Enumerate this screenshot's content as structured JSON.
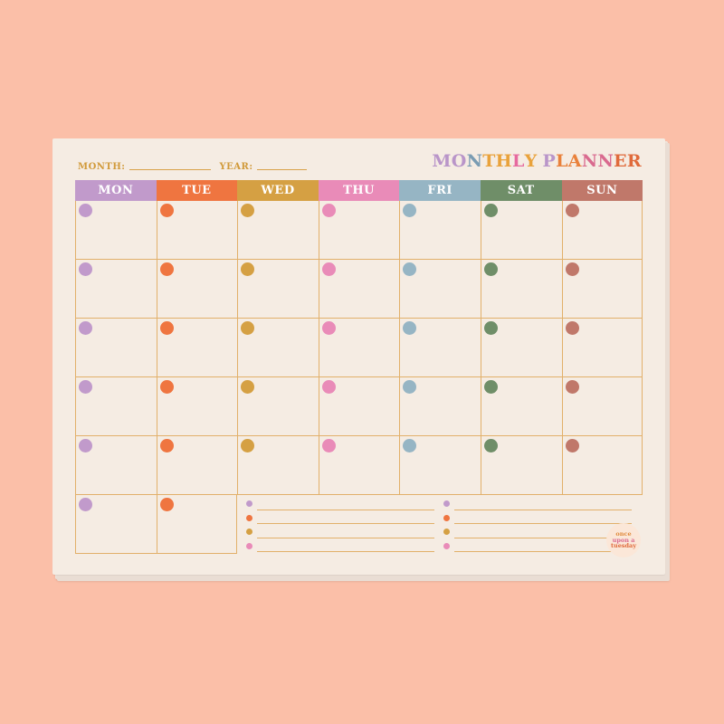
{
  "planner": {
    "month_label": "MONTH:",
    "year_label": "YEAR:",
    "title_parts": [
      {
        "text": "MO",
        "color": "#b995c9"
      },
      {
        "text": "N",
        "color": "#7a9cb3"
      },
      {
        "text": "TH",
        "color": "#e9a23b"
      },
      {
        "text": "L",
        "color": "#e66a9f"
      },
      {
        "text": "Y",
        "color": "#e9a23b"
      },
      {
        "text": " P",
        "color": "#b995c9"
      },
      {
        "text": "LA",
        "color": "#e9813b"
      },
      {
        "text": "NN",
        "color": "#d96a8f"
      },
      {
        "text": "ER",
        "color": "#e06a3b"
      }
    ],
    "days": [
      {
        "label": "MON",
        "color": "#c19acb"
      },
      {
        "label": "TUE",
        "color": "#ef7540"
      },
      {
        "label": "WED",
        "color": "#d5a043"
      },
      {
        "label": "THU",
        "color": "#e98bb8"
      },
      {
        "label": "FRI",
        "color": "#96b5c4"
      },
      {
        "label": "SAT",
        "color": "#6f8e68"
      },
      {
        "label": "SUN",
        "color": "#c0786a"
      }
    ],
    "notes_colors": [
      "#c19acb",
      "#ef7540",
      "#d5a043",
      "#e98bb8"
    ],
    "logo_lines": [
      "once",
      "upon a",
      "tuesday"
    ]
  }
}
